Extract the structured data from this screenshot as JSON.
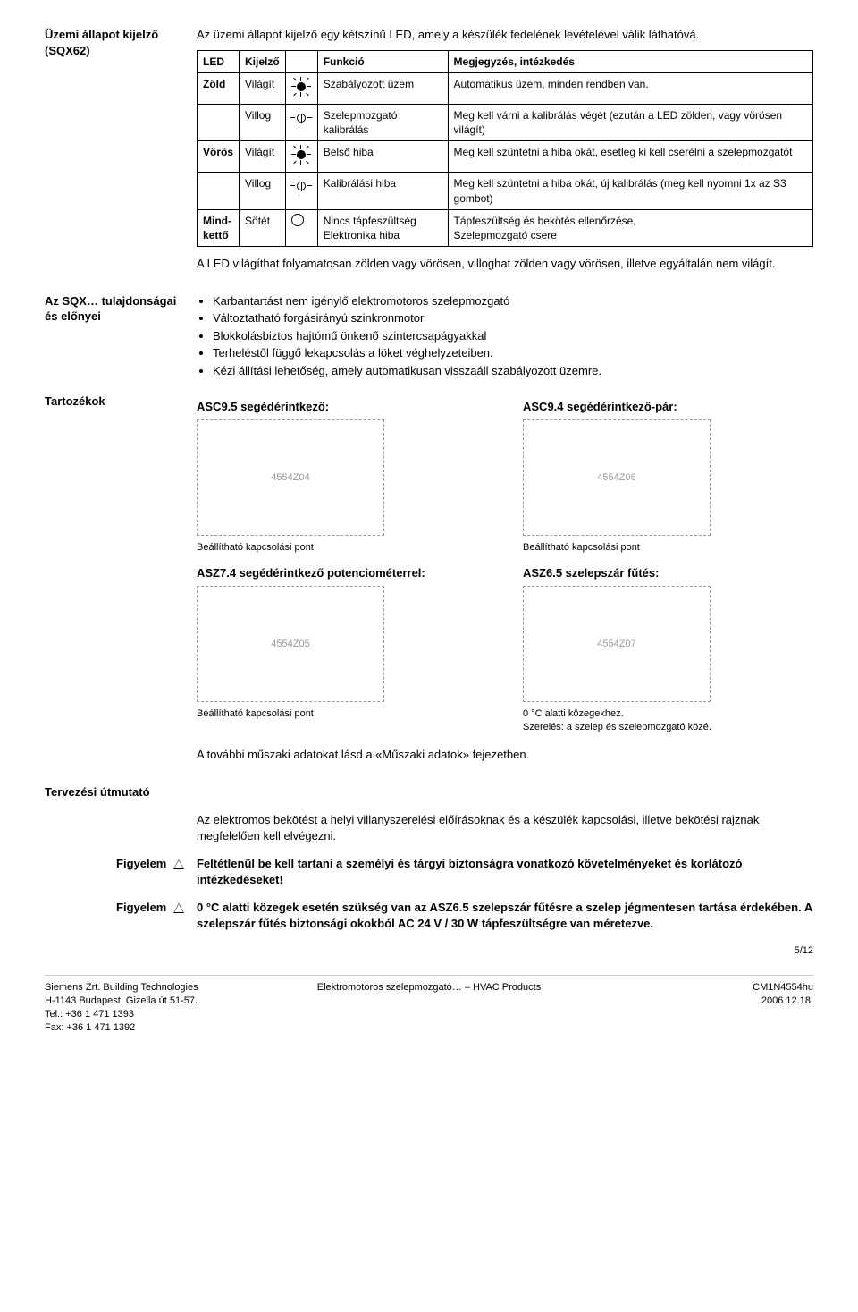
{
  "section1": {
    "left_line1": "Üzemi állapot kijelző",
    "left_line2": "(SQX62)",
    "intro": "Az üzemi állapot kijelző egy kétszínű LED, amely a készülék fedelének levételével válik láthatóvá.",
    "table": {
      "headers": [
        "LED",
        "Kijelző",
        "",
        "Funkció",
        "Megjegyzés, intézkedés"
      ],
      "rows": [
        {
          "led": "Zöld",
          "kij": "Világít",
          "icon": "solid",
          "funk": "Szabályozott üzem",
          "meg": "Automatikus üzem, minden rendben van."
        },
        {
          "led": "",
          "kij": "Villog",
          "icon": "flash",
          "funk": "Szelepmozgató kalibrálás",
          "meg": "Meg kell várni a kalibrálás végét (ezután a LED zölden, vagy vörösen világít)"
        },
        {
          "led": "Vörös",
          "kij": "Világít",
          "icon": "solid",
          "funk": "Belső hiba",
          "meg": "Meg kell szüntetni a hiba okát, esetleg ki kell cserélni a szelepmozgatót"
        },
        {
          "led": "",
          "kij": "Villog",
          "icon": "flash",
          "funk": "Kalibrálási hiba",
          "meg": "Meg kell szüntetni a hiba okát, új kalibrálás (meg kell nyomni 1x az S3 gombot)"
        },
        {
          "led": "Mind-kettő",
          "kij": "Sötét",
          "icon": "off",
          "funk": "Nincs tápfeszültség\nElektronika hiba",
          "meg": "Tápfeszültség és bekötés ellenőrzése,\nSzelepmozgató csere"
        }
      ]
    },
    "after_table": "A LED világíthat folyamatosan zölden vagy vörösen, villoghat zölden vagy vörösen, illetve egyáltalán nem világít."
  },
  "section2": {
    "left": "Az SQX… tulajdonságai és előnyei",
    "bullets": [
      "Karbantartást nem igénylő elektromotoros szelepmozgató",
      "Változtatható forgásirányú szinkronmotor",
      "Blokkolásbiztos hajtómű önkenő szintercsapágyakkal",
      "Terheléstől függő lekapcsolás a löket véghelyzeteiben.",
      "Kézi állítási lehetőség, amely automatikusan visszaáll szabályozott üzemre."
    ]
  },
  "section3": {
    "left": "Tartozékok",
    "acc": [
      {
        "title": "ASC9.5 segédérintkező:",
        "img_label": "4554Z04",
        "caption": "Beállítható kapcsolási pont"
      },
      {
        "title": "ASC9.4 segédérintkező-pár:",
        "img_label": "4554Z06",
        "caption": "Beállítható kapcsolási pont"
      },
      {
        "title": "ASZ7.4 segédérintkező potenciométerrel:",
        "img_label": "4554Z05",
        "caption": "Beállítható kapcsolási pont"
      },
      {
        "title": "ASZ6.5 szelepszár fűtés:",
        "img_label": "4554Z07",
        "caption": "0 °C alatti közegekhez.\nSzerelés: a szelep és szelepmozgató közé."
      }
    ],
    "after": "A további műszaki adatokat lásd a «Műszaki adatok» fejezetben."
  },
  "section4": {
    "left": "Tervezési útmutató",
    "intro": "Az elektromos bekötést a helyi villanyszerelési előírásoknak és a készülék kapcsolási, illetve bekötési rajznak megfelelően kell elvégezni.",
    "warn1_label": "Figyelem",
    "warn1_text": "Feltétlenül be kell tartani a személyi és tárgyi biztonságra vonatkozó követelményeket és korlátozó intézkedéseket!",
    "warn2_label": "Figyelem",
    "warn2_text": "0 °C alatti közegek esetén szükség van az ASZ6.5 szelepszár fűtésre a szelep jégmentesen tartása érdekében. A szelepszár fűtés biztonsági okokból AC 24 V / 30 W tápfeszültségre van méretezve."
  },
  "footer": {
    "page": "5/12",
    "left1": "Siemens Zrt. Building Technologies",
    "left2": "H-1143 Budapest, Gizella út 51-57.",
    "left3": "Tel.: +36 1 471 1393",
    "left4": "Fax: +36 1 471 1392",
    "mid": "Elektromotoros szelepmozgató… – HVAC Products",
    "right1": "CM1N4554hu",
    "right2": "2006.12.18."
  }
}
